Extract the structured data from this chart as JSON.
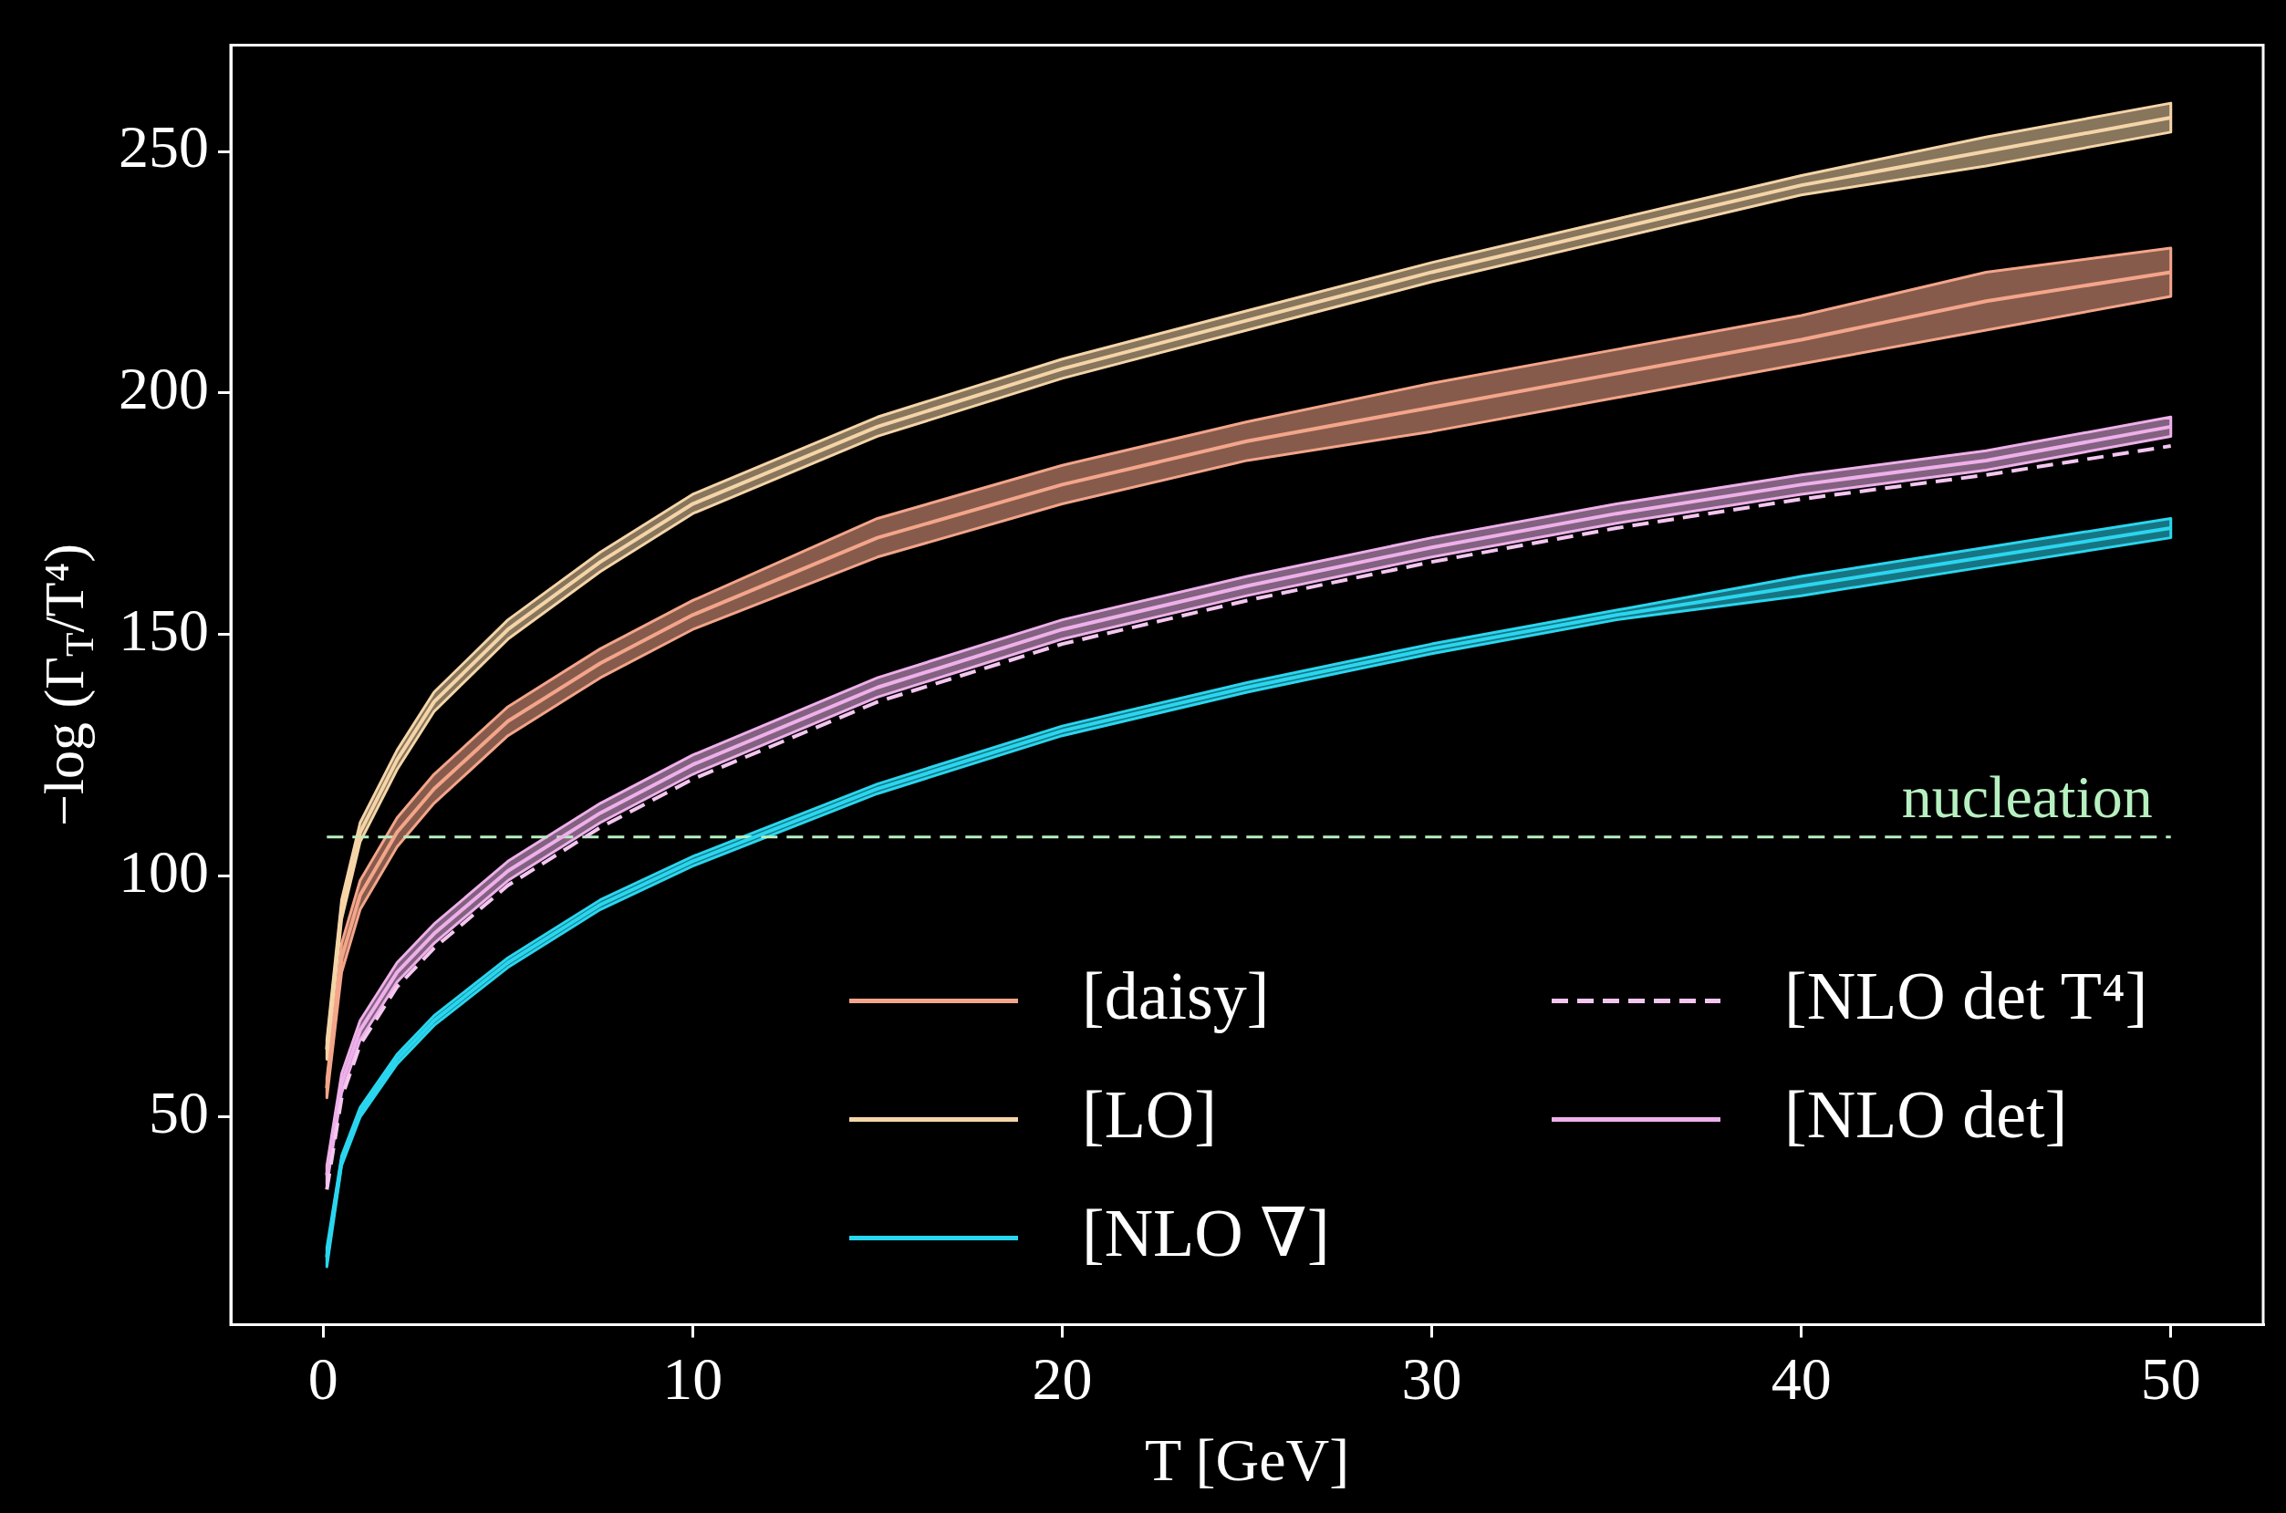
{
  "chart_data": {
    "type": "line",
    "xlabel": "T [GeV]",
    "ylabel": "−log (Γ$_{T}$/T⁴)",
    "x": [
      0.1,
      0.5,
      1,
      2,
      3,
      5,
      7.5,
      10,
      15,
      20,
      25,
      30,
      35,
      40,
      45,
      50
    ],
    "xlim": [
      -2.5,
      52.5
    ],
    "ylim": [
      7,
      272
    ],
    "xticks": [
      0,
      10,
      20,
      30,
      40,
      50
    ],
    "yticks": [
      50,
      100,
      150,
      200,
      250
    ],
    "grid": false,
    "legend": "bottom right",
    "line_style": "solid",
    "marker": "none",
    "series": [
      {
        "name": "[daisy]",
        "color": "#f4a58a",
        "values": [
          56,
          83,
          96,
          109,
          118,
          132,
          144,
          154,
          170,
          181,
          190,
          197,
          204,
          211,
          219,
          225
        ],
        "lower": [
          54,
          80,
          93,
          106,
          115,
          129,
          141,
          151,
          166,
          177,
          186,
          192,
          199,
          206,
          213,
          220
        ],
        "upper": [
          58,
          86,
          99,
          112,
          121,
          135,
          147,
          157,
          174,
          185,
          194,
          202,
          209,
          216,
          225,
          230
        ]
      },
      {
        "name": "[LO]",
        "color": "#f5d5a8",
        "values": [
          64,
          93,
          109,
          124,
          136,
          151,
          165,
          177,
          193,
          205,
          215,
          225,
          234,
          243,
          250,
          257
        ],
        "lower": [
          62,
          91,
          107,
          122,
          134,
          149,
          163,
          175,
          191,
          203,
          213,
          223,
          232,
          241,
          247,
          254
        ],
        "upper": [
          66,
          95,
          111,
          126,
          138,
          153,
          167,
          179,
          195,
          207,
          217,
          227,
          236,
          245,
          253,
          260
        ]
      },
      {
        "name": "[NLO ∇]",
        "color": "#2ad6ef",
        "values": [
          21,
          41,
          51,
          62,
          70,
          82,
          94,
          103,
          118,
          130,
          139,
          147,
          154,
          160,
          166,
          172
        ],
        "lower": [
          19,
          40,
          50,
          61,
          69,
          81,
          93,
          102,
          117,
          129,
          138,
          146,
          153,
          158,
          164,
          170
        ],
        "upper": [
          23,
          42,
          52,
          63,
          71,
          83,
          95,
          104,
          119,
          131,
          140,
          148,
          155,
          162,
          168,
          174
        ]
      },
      {
        "name": "[NLO det T⁴]",
        "color": "#f4c6f0",
        "line_style": "dashed",
        "values": [
          35,
          54,
          65,
          77,
          85,
          98,
          110,
          120,
          136,
          148,
          157,
          165,
          172,
          178,
          183,
          189
        ]
      },
      {
        "name": "[NLO det]",
        "color": "#eeb0ea",
        "values": [
          38,
          57,
          68,
          80,
          88,
          101,
          113,
          123,
          139,
          151,
          160,
          168,
          175,
          181,
          186,
          193
        ],
        "lower": [
          36,
          55,
          66,
          78,
          86,
          99,
          111,
          121,
          137,
          149,
          158,
          166,
          173,
          179,
          184,
          191
        ],
        "upper": [
          40,
          59,
          70,
          82,
          90,
          103,
          115,
          125,
          141,
          153,
          162,
          170,
          177,
          183,
          188,
          195
        ]
      }
    ],
    "ref_lines": [
      {
        "axis": "y",
        "value": 108,
        "label": "nucleation",
        "color": "#b7f0c0",
        "line_style": "dashed"
      }
    ]
  }
}
